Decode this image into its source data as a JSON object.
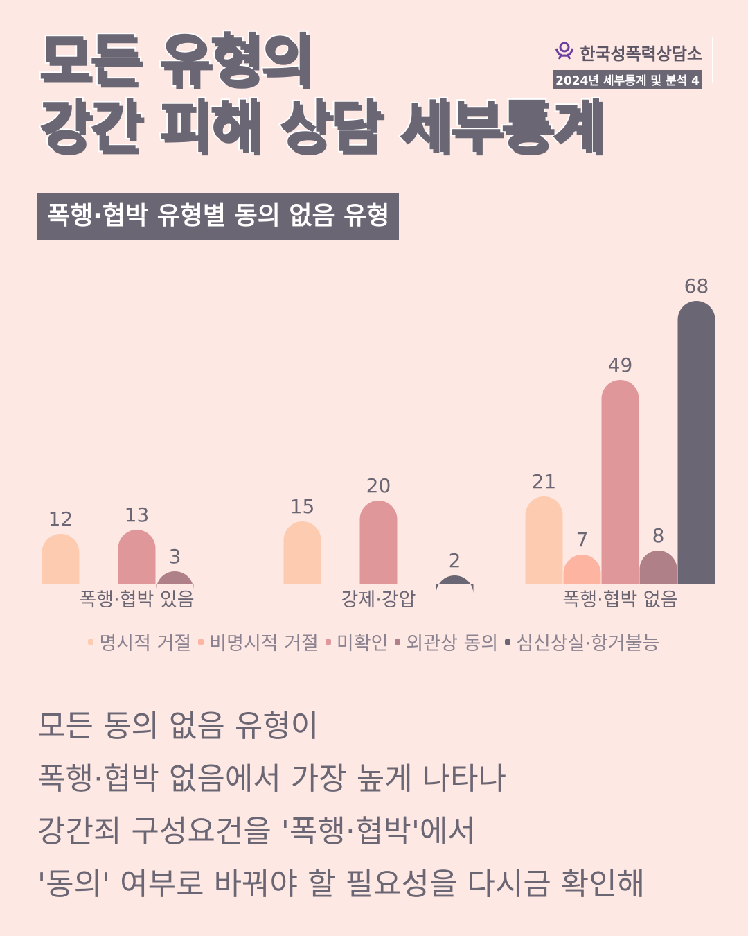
{
  "title": {
    "line1": "모든 유형의",
    "line2": "강간 피해 상담 세부통계"
  },
  "org": {
    "name": "한국성폭력상담소",
    "subtitle": "2024년 세부통계 및 분석 4",
    "icon": "org-logo-icon"
  },
  "subtitle": "폭행·협박 유형별 동의 없음 유형",
  "chart_data": {
    "type": "bar",
    "categories": [
      "폭행·협박 있음",
      "강제·강압",
      "폭행·협박 없음"
    ],
    "series": [
      {
        "name": "명시적 거절",
        "color": "#fdcbb0",
        "values": [
          12,
          15,
          21
        ]
      },
      {
        "name": "비명시적 거절",
        "color": "#fdb4a0",
        "values": [
          null,
          null,
          7
        ]
      },
      {
        "name": "미확인",
        "color": "#e0979a",
        "values": [
          13,
          20,
          49
        ]
      },
      {
        "name": "외관상 동의",
        "color": "#b08088",
        "values": [
          3,
          null,
          8
        ]
      },
      {
        "name": "심신상실·항거불능",
        "color": "#6b6674",
        "values": [
          null,
          2,
          68
        ]
      }
    ],
    "legend": "bottom",
    "grid": false
  },
  "body": {
    "lines": [
      "모든 동의 없음 유형이",
      "폭행·협박 없음에서 가장 높게 나타나",
      "강간죄 구성요건을 '폭행·협박'에서",
      "'동의' 여부로 바꿔야 할 필요성을 다시금 확인해"
    ]
  }
}
